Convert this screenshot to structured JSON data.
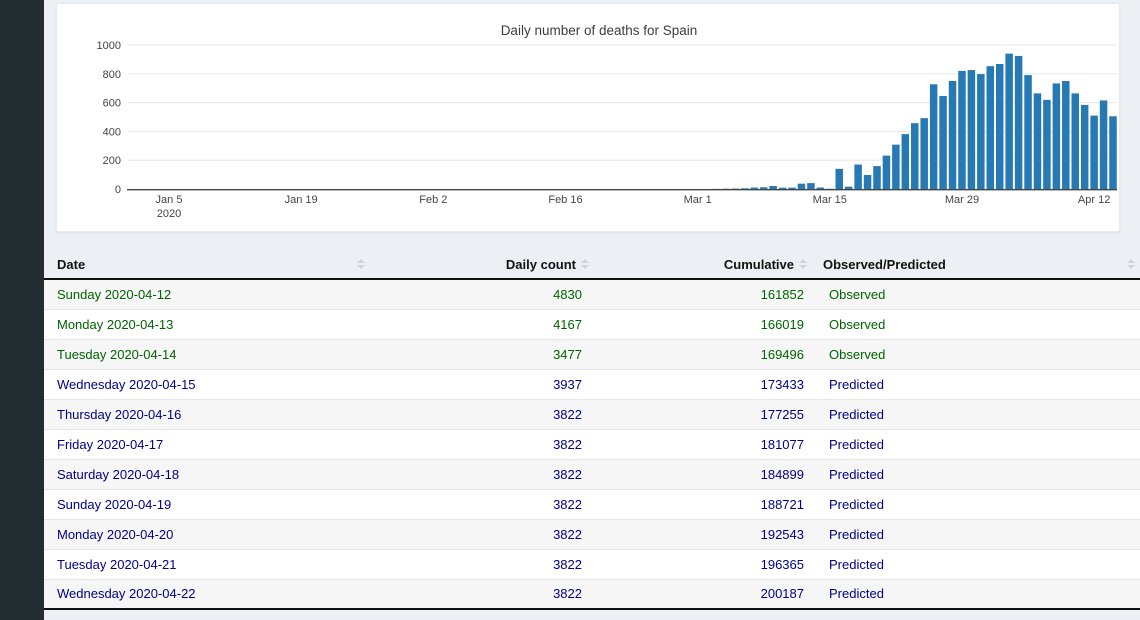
{
  "page": {
    "background": "#ecf0f5",
    "sidebar_color": "#222d32"
  },
  "chart_data": {
    "type": "bar",
    "title": "Daily number of deaths for Spain",
    "xlabel": "",
    "ylabel": "",
    "ylim": [
      0,
      1000
    ],
    "grid": "horizontal",
    "bar_color": "#2679b2",
    "y_ticks": [
      0,
      200,
      400,
      600,
      800,
      1000
    ],
    "x_ticks": [
      {
        "label": "Jan 5",
        "sublabel": "2020",
        "date": "2020-01-05"
      },
      {
        "label": "Jan 19",
        "date": "2020-01-19"
      },
      {
        "label": "Feb 2",
        "date": "2020-02-02"
      },
      {
        "label": "Feb 16",
        "date": "2020-02-16"
      },
      {
        "label": "Mar 1",
        "date": "2020-03-01"
      },
      {
        "label": "Mar 15",
        "date": "2020-03-15"
      },
      {
        "label": "Mar 29",
        "date": "2020-03-29"
      },
      {
        "label": "Apr 12",
        "date": "2020-04-12"
      }
    ],
    "x": [
      "2020-03-03",
      "2020-03-04",
      "2020-03-05",
      "2020-03-06",
      "2020-03-07",
      "2020-03-08",
      "2020-03-09",
      "2020-03-10",
      "2020-03-11",
      "2020-03-12",
      "2020-03-13",
      "2020-03-14",
      "2020-03-15",
      "2020-03-16",
      "2020-03-17",
      "2020-03-18",
      "2020-03-19",
      "2020-03-20",
      "2020-03-21",
      "2020-03-22",
      "2020-03-23",
      "2020-03-24",
      "2020-03-25",
      "2020-03-26",
      "2020-03-27",
      "2020-03-28",
      "2020-03-29",
      "2020-03-30",
      "2020-03-31",
      "2020-04-01",
      "2020-04-02",
      "2020-04-03",
      "2020-04-04",
      "2020-04-05",
      "2020-04-06",
      "2020-04-07",
      "2020-04-08",
      "2020-04-09",
      "2020-04-10",
      "2020-04-11",
      "2020-04-12",
      "2020-04-13",
      "2020-04-14"
    ],
    "values": [
      1,
      2,
      3,
      5,
      10,
      12,
      21,
      9,
      9,
      37,
      41,
      10,
      2,
      140,
      16,
      170,
      97,
      159,
      232,
      308,
      381,
      457,
      492,
      727,
      646,
      750,
      820,
      826,
      798,
      853,
      868,
      940,
      924,
      791,
      664,
      619,
      733,
      750,
      664,
      584,
      510,
      615,
      505
    ]
  },
  "table": {
    "columns": [
      {
        "label": "Date"
      },
      {
        "label": "Daily count"
      },
      {
        "label": "Cumulative"
      },
      {
        "label": "Observed/Predicted"
      }
    ],
    "status_colors": {
      "Observed": "#006400",
      "Predicted": "#00008b"
    },
    "rows": [
      {
        "date": "Sunday 2020-04-12",
        "daily": "4830",
        "cumulative": "161852",
        "status": "Observed"
      },
      {
        "date": "Monday 2020-04-13",
        "daily": "4167",
        "cumulative": "166019",
        "status": "Observed"
      },
      {
        "date": "Tuesday 2020-04-14",
        "daily": "3477",
        "cumulative": "169496",
        "status": "Observed"
      },
      {
        "date": "Wednesday 2020-04-15",
        "daily": "3937",
        "cumulative": "173433",
        "status": "Predicted"
      },
      {
        "date": "Thursday 2020-04-16",
        "daily": "3822",
        "cumulative": "177255",
        "status": "Predicted"
      },
      {
        "date": "Friday 2020-04-17",
        "daily": "3822",
        "cumulative": "181077",
        "status": "Predicted"
      },
      {
        "date": "Saturday 2020-04-18",
        "daily": "3822",
        "cumulative": "184899",
        "status": "Predicted"
      },
      {
        "date": "Sunday 2020-04-19",
        "daily": "3822",
        "cumulative": "188721",
        "status": "Predicted"
      },
      {
        "date": "Monday 2020-04-20",
        "daily": "3822",
        "cumulative": "192543",
        "status": "Predicted"
      },
      {
        "date": "Tuesday 2020-04-21",
        "daily": "3822",
        "cumulative": "196365",
        "status": "Predicted"
      },
      {
        "date": "Wednesday 2020-04-22",
        "daily": "3822",
        "cumulative": "200187",
        "status": "Predicted"
      }
    ]
  }
}
